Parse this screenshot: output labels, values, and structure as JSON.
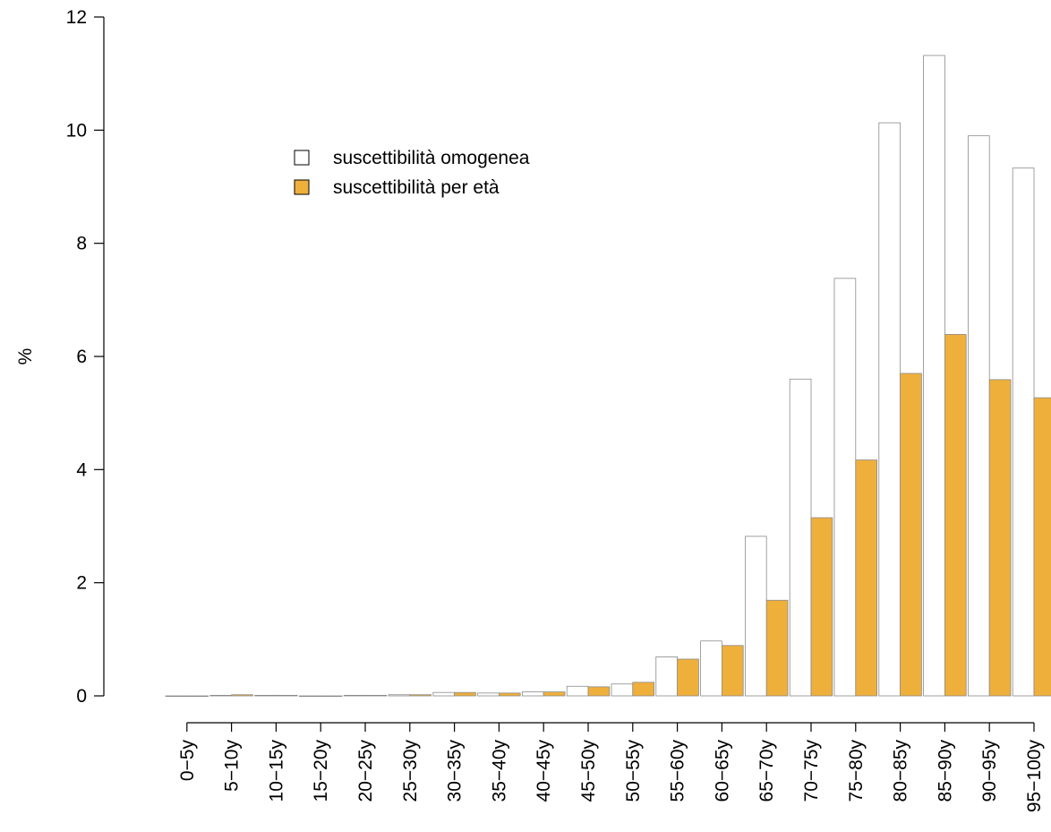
{
  "chart_data": {
    "type": "bar",
    "ylabel": "%",
    "ylim": [
      0,
      12
    ],
    "yticks": [
      0,
      2,
      4,
      6,
      8,
      10,
      12
    ],
    "grid": false,
    "legend_position": "top-left",
    "categories": [
      "0−5y",
      "5−10y",
      "10−15y",
      "15−20y",
      "20−25y",
      "25−30y",
      "30−35y",
      "35−40y",
      "40−45y",
      "45−50y",
      "50−55y",
      "55−60y",
      "60−65y",
      "65−70y",
      "70−75y",
      "75−80y",
      "80−85y",
      "85−90y",
      "90−95y",
      "95−100y"
    ],
    "series": [
      {
        "name": "suscettibilità omogenea",
        "color": "#ffffff",
        "values": [
          0.0,
          0.01,
          0.01,
          0.0,
          0.01,
          0.02,
          0.06,
          0.05,
          0.07,
          0.17,
          0.21,
          0.69,
          0.97,
          2.82,
          5.6,
          7.38,
          10.13,
          11.32,
          9.9,
          9.33
        ]
      },
      {
        "name": "suscettibilità per età",
        "color": "#efaf3b",
        "values": [
          0.0,
          0.02,
          0.01,
          0.0,
          0.01,
          0.02,
          0.06,
          0.05,
          0.07,
          0.16,
          0.24,
          0.65,
          0.89,
          1.69,
          3.15,
          4.17,
          5.7,
          6.39,
          5.59,
          5.27
        ]
      }
    ]
  }
}
